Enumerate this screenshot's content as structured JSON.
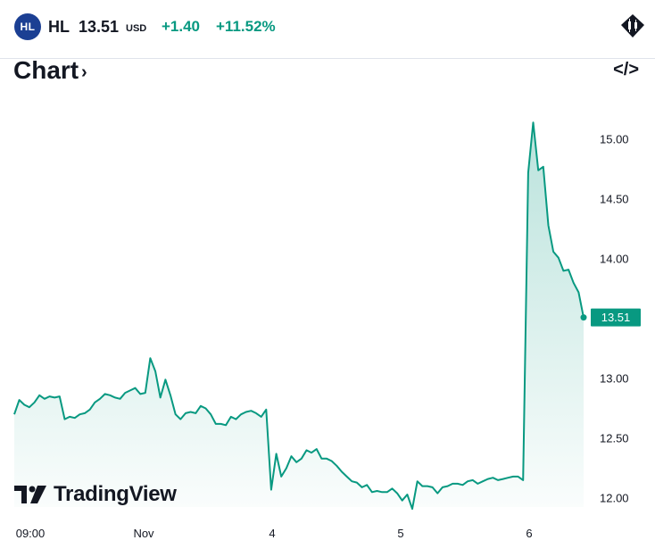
{
  "header": {
    "logo_text": "HL",
    "symbol": "HL",
    "price": "13.51",
    "currency": "USD",
    "change": "+1.40",
    "change_pct": "+11.52%",
    "accent_color": "#089981",
    "logo_color": "#1b3f93"
  },
  "section": {
    "title": "Chart",
    "chevron": "›",
    "embed_icon": "</>"
  },
  "watermark": {
    "text": "TradingView"
  },
  "chart_data": {
    "type": "area",
    "line_color": "#089981",
    "x_tick_labels": [
      "09:00",
      "Nov",
      "4",
      "5",
      "6"
    ],
    "y_tick_labels": [
      "15.00",
      "14.50",
      "14.00",
      "13.50",
      "13.00",
      "12.50",
      "12.00"
    ],
    "y_ticks": [
      15.0,
      14.5,
      14.0,
      13.5,
      13.0,
      12.5,
      12.0
    ],
    "ylim": [
      11.9,
      15.2
    ],
    "last_price": 13.51,
    "last_price_label": "13.51",
    "grid": false,
    "values": [
      12.7,
      12.82,
      12.78,
      12.76,
      12.8,
      12.86,
      12.83,
      12.85,
      12.84,
      12.85,
      12.66,
      12.68,
      12.67,
      12.7,
      12.71,
      12.74,
      12.8,
      12.83,
      12.87,
      12.86,
      12.84,
      12.83,
      12.88,
      12.9,
      12.92,
      12.87,
      12.88,
      13.17,
      13.06,
      12.84,
      12.99,
      12.86,
      12.7,
      12.66,
      12.71,
      12.72,
      12.71,
      12.77,
      12.75,
      12.7,
      12.62,
      12.62,
      12.61,
      12.68,
      12.66,
      12.7,
      12.72,
      12.73,
      12.71,
      12.68,
      12.74,
      12.07,
      12.37,
      12.18,
      12.25,
      12.35,
      12.3,
      12.33,
      12.4,
      12.38,
      12.41,
      12.33,
      12.33,
      12.31,
      12.27,
      12.22,
      12.18,
      12.14,
      12.13,
      12.09,
      12.11,
      12.05,
      12.06,
      12.05,
      12.05,
      12.08,
      12.04,
      11.98,
      12.03,
      11.91,
      12.14,
      12.1,
      12.1,
      12.09,
      12.04,
      12.09,
      12.1,
      12.12,
      12.12,
      12.11,
      12.14,
      12.15,
      12.12,
      12.14,
      12.16,
      12.17,
      12.15,
      12.16,
      12.17,
      12.18,
      12.18,
      12.15,
      14.72,
      15.14,
      14.74,
      14.77,
      14.28,
      14.06,
      14.01,
      13.9,
      13.91,
      13.8,
      13.72,
      13.51
    ]
  }
}
